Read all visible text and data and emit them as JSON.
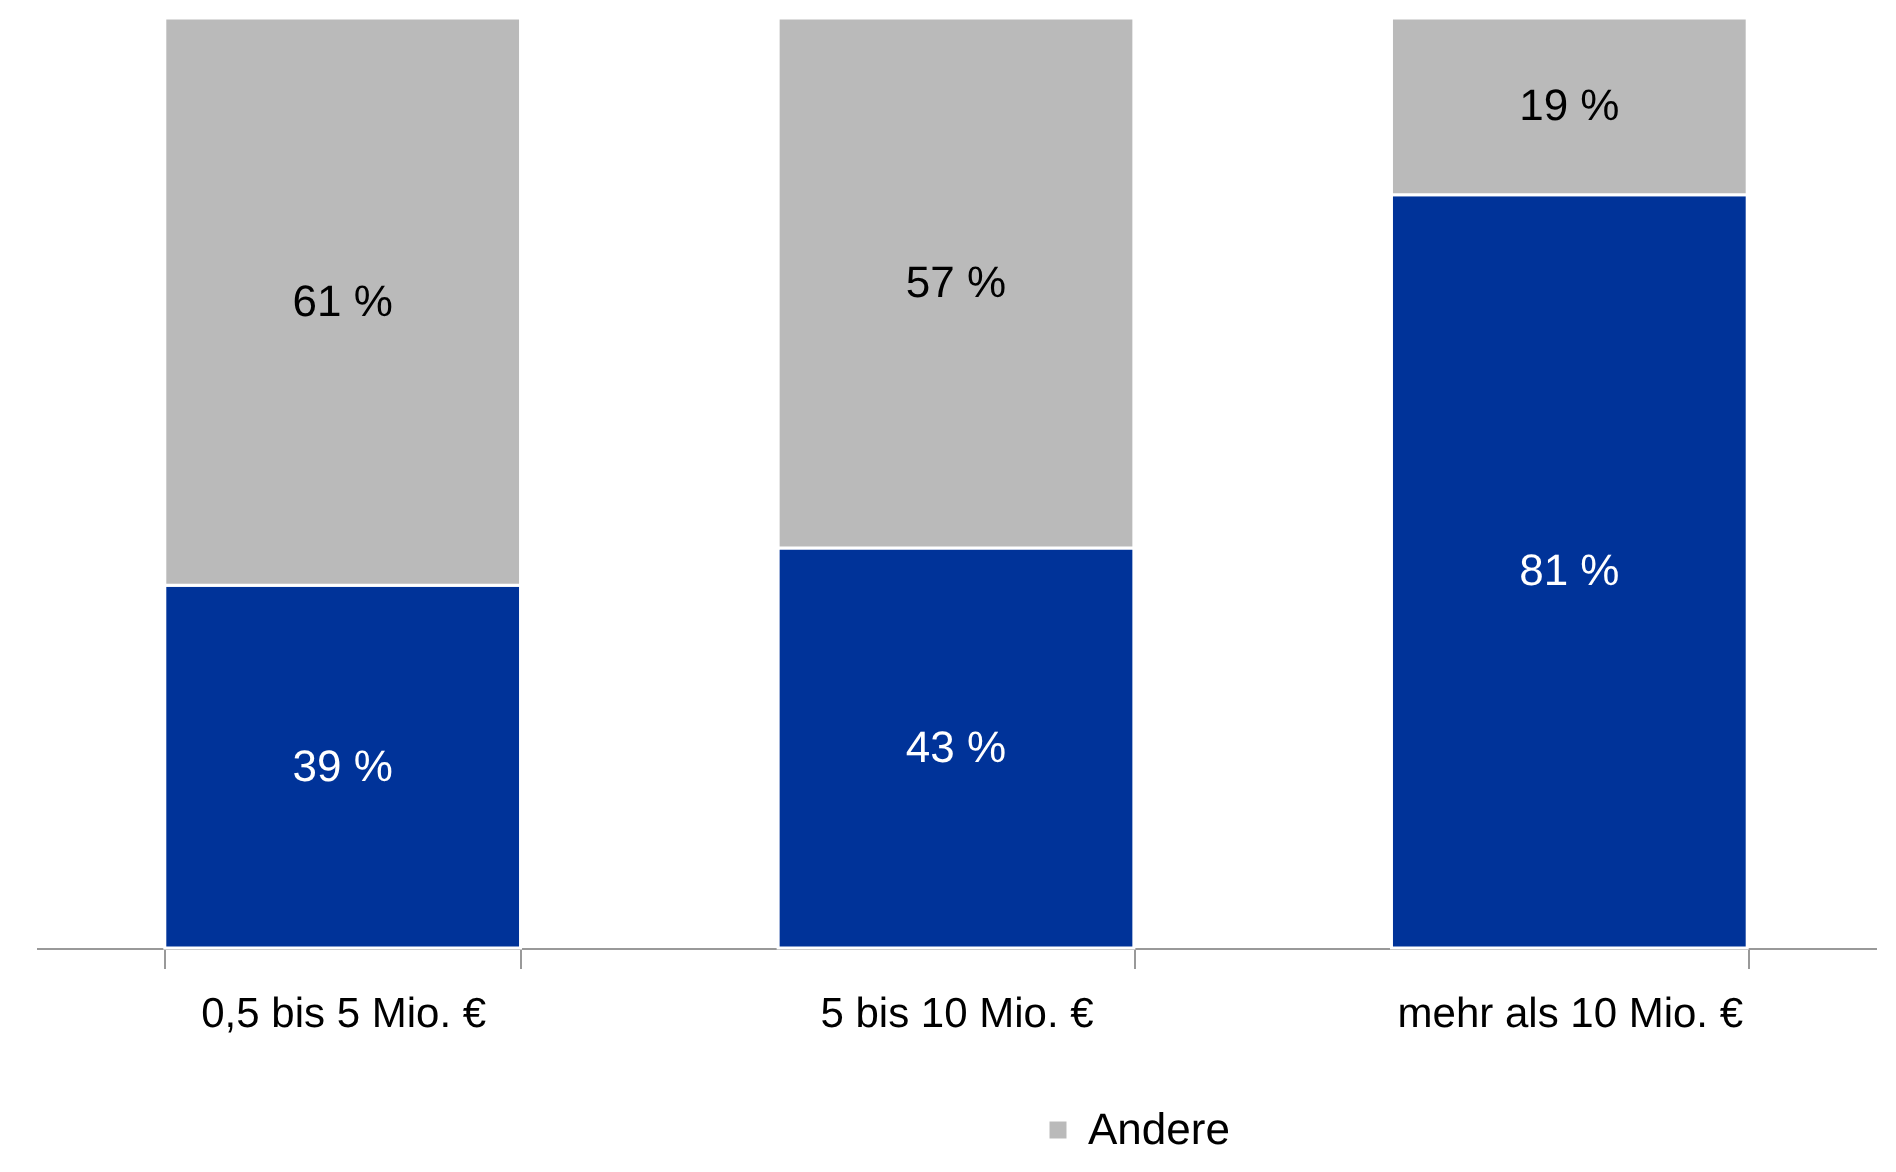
{
  "chart_data": {
    "type": "bar",
    "stacked": true,
    "categories": [
      "0,5 bis 5 Mio. €",
      "5 bis 10 Mio. €",
      "mehr als 10 Mio. €"
    ],
    "series": [
      {
        "color": "#003399",
        "values": [
          39,
          43,
          81
        ],
        "value_labels": [
          "39 %",
          "43 %",
          "81 %"
        ]
      },
      {
        "name": "Andere",
        "color": "#bababa",
        "values": [
          61,
          57,
          19
        ],
        "value_labels": [
          "61 %",
          "57 %",
          "19 %"
        ]
      }
    ],
    "ylim": [
      0,
      100
    ],
    "tick_labels": "x",
    "legend": "bottom"
  }
}
